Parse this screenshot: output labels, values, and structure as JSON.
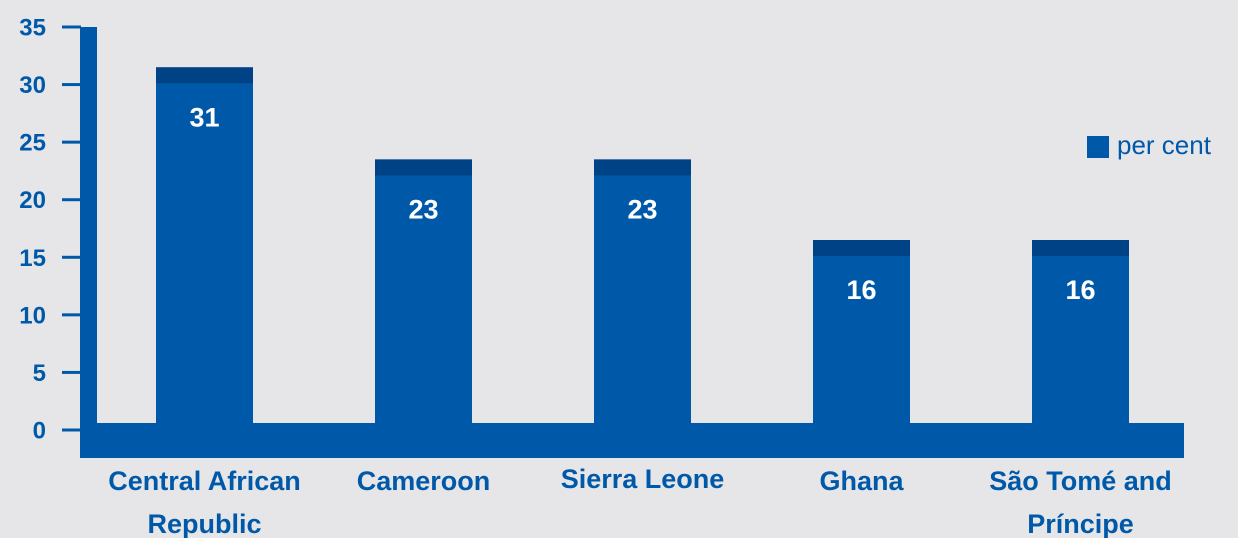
{
  "chart_data": {
    "type": "bar",
    "categories": [
      [
        "Central African",
        "Republic"
      ],
      [
        "Cameroon"
      ],
      [
        "Sierra Leone"
      ],
      [
        "Ghana"
      ],
      [
        "São Tomé and",
        "Príncipe"
      ]
    ],
    "series": [
      {
        "name": "per cent",
        "values": [
          31,
          23,
          23,
          16,
          16
        ]
      }
    ],
    "data_labels": [
      "31",
      "23",
      "23",
      "16",
      "16"
    ],
    "ylim": [
      0,
      35
    ],
    "yticks": [
      0,
      5,
      10,
      15,
      20,
      25,
      30,
      35
    ],
    "ytick_labels": [
      "0",
      "5",
      "10",
      "15",
      "20",
      "25",
      "30",
      "35"
    ],
    "title": "",
    "xlabel": "",
    "ylabel": "",
    "grid": false,
    "legend": {
      "position": "right",
      "label": "per cent"
    },
    "colors": {
      "bar": "#0059a8",
      "bar_top": "#004286",
      "axis": "#0059a8",
      "text": "#0059a8",
      "data_label": "#ffffff",
      "background": "#e6e6e8"
    }
  }
}
